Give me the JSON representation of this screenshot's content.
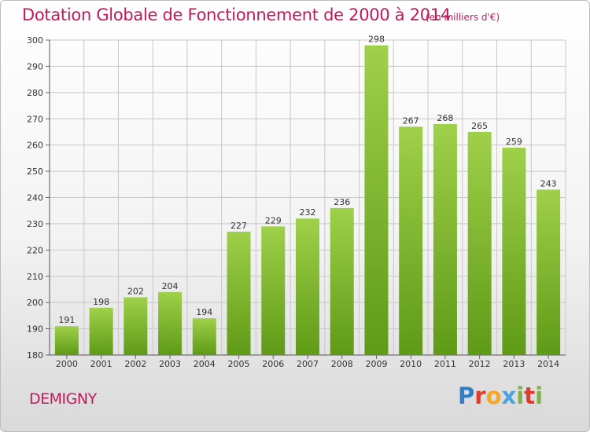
{
  "header": {
    "title": "Dotation Globale de Fonctionnement de 2000 à 2014",
    "subtitle": "(en milliers d'€)"
  },
  "footer": {
    "place": "DEMIGNY",
    "logo_letters": [
      "P",
      "r",
      "o",
      "x",
      "i",
      "t",
      "i"
    ],
    "logo_colors": [
      "#2e7fc9",
      "#e03b2f",
      "#f5a623",
      "#4aa3df",
      "#7cb342",
      "#e03b2f",
      "#7cb342"
    ]
  },
  "colors": {
    "title": "#c2185b",
    "bar_top": "#9fd04a",
    "bar_bottom": "#5f9a16",
    "grid": "#c8c8c8"
  },
  "chart_data": {
    "type": "bar",
    "title": "Dotation Globale de Fonctionnement de 2000 à 2014",
    "subtitle": "(en milliers d'€)",
    "categories": [
      "2000",
      "2001",
      "2002",
      "2003",
      "2004",
      "2005",
      "2006",
      "2007",
      "2008",
      "2009",
      "2010",
      "2011",
      "2012",
      "2013",
      "2014"
    ],
    "values": [
      191,
      198,
      202,
      204,
      194,
      227,
      229,
      232,
      236,
      298,
      267,
      268,
      265,
      259,
      243
    ],
    "ylim": [
      180,
      300
    ],
    "yticks": [
      180,
      190,
      200,
      210,
      220,
      230,
      240,
      250,
      260,
      270,
      280,
      290,
      300
    ],
    "grid": true,
    "xlabel": "",
    "ylabel": ""
  }
}
